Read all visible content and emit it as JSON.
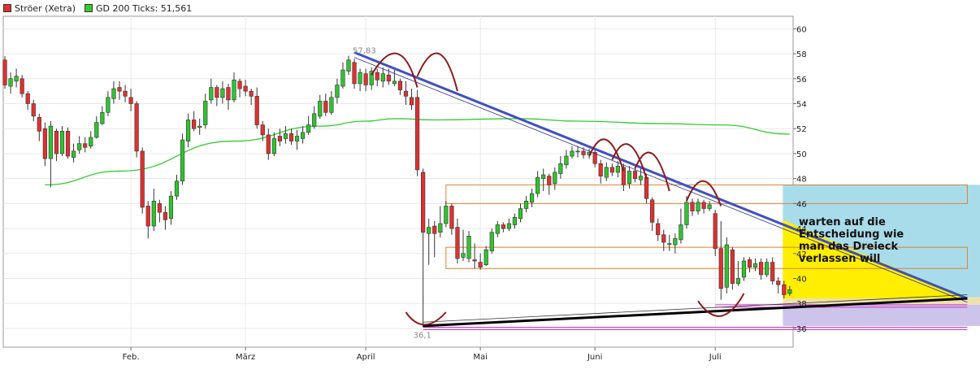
{
  "legend": {
    "series1": "Ströer (Xetra)",
    "series2": "GD 200 Ticks: 51,561",
    "series1_color": "#e03030",
    "series2_color": "#33cc33"
  },
  "annotation": {
    "lines": [
      "warten auf die",
      "Entscheidung wie",
      "man das Dreieck",
      "verlassen will"
    ]
  },
  "colors": {
    "up_candle": "#2ec42e",
    "down_candle": "#e03030",
    "ma_line": "#33cc33",
    "trend_down_thick": "#4050c0",
    "trend_up_thick": "#000000",
    "arcs": "#8b1a1a",
    "boxes": "#e08030",
    "support_lines": "#cc33cc",
    "zone_upper": "#a8dcea",
    "zone_triangle": "#ffee00",
    "zone_lower_tan": "#efe0b0",
    "zone_lower_purple": "#ccc4ea"
  },
  "chart_data": {
    "type": "candlestick",
    "title": "",
    "xlabel": "",
    "ylabel": "",
    "ylim": [
      34.5,
      61
    ],
    "y_ticks": [
      36,
      38,
      40,
      42,
      44,
      46,
      48,
      50,
      52,
      54,
      56,
      58,
      60
    ],
    "x_ticks": [
      {
        "label": "Feb.",
        "day": 22
      },
      {
        "label": "März",
        "day": 42
      },
      {
        "label": "April",
        "day": 63
      },
      {
        "label": "Mai",
        "day": 83
      },
      {
        "label": "Juni",
        "day": 103
      },
      {
        "label": "Juli",
        "day": 124
      }
    ],
    "high_label": {
      "text": "57,83",
      "day": 61,
      "value": 57.83
    },
    "low_label": {
      "text": "36,1",
      "day": 73,
      "value": 36.1
    },
    "candles": [
      [
        0,
        57.5,
        55.5,
        57.8,
        55.2
      ],
      [
        1,
        55.4,
        56.0,
        56.5,
        54.8
      ],
      [
        2,
        55.8,
        56.2,
        56.8,
        55.3
      ],
      [
        3,
        56.0,
        54.8,
        56.3,
        54.5
      ],
      [
        4,
        54.8,
        54.0,
        55.0,
        53.5
      ],
      [
        5,
        54.0,
        53.0,
        54.3,
        52.6
      ],
      [
        6,
        52.9,
        51.8,
        53.2,
        51.0
      ],
      [
        7,
        52.0,
        49.6,
        52.5,
        49.0
      ],
      [
        8,
        49.6,
        52.2,
        52.6,
        47.3
      ],
      [
        9,
        51.8,
        50.0,
        52.0,
        49.4
      ],
      [
        10,
        50.0,
        51.8,
        52.2,
        49.8
      ],
      [
        11,
        51.8,
        49.8,
        52.1,
        49.6
      ],
      [
        12,
        49.7,
        50.2,
        50.8,
        49.3
      ],
      [
        13,
        50.3,
        50.8,
        51.4,
        50.0
      ],
      [
        14,
        50.8,
        50.5,
        51.3,
        50.1
      ],
      [
        15,
        50.6,
        51.3,
        51.8,
        50.4
      ],
      [
        16,
        51.3,
        52.5,
        53.0,
        51.2
      ],
      [
        17,
        52.4,
        53.3,
        53.8,
        52.3
      ],
      [
        18,
        53.3,
        54.5,
        55.0,
        53.0
      ],
      [
        19,
        54.4,
        55.2,
        55.8,
        54.0
      ],
      [
        20,
        55.3,
        55.0,
        55.8,
        54.3
      ],
      [
        21,
        55.0,
        54.6,
        55.5,
        54.1
      ],
      [
        22,
        54.5,
        54.0,
        55.2,
        53.4
      ],
      [
        23,
        54.0,
        50.2,
        54.2,
        49.7
      ],
      [
        24,
        50.2,
        45.7,
        50.5,
        45.2
      ],
      [
        25,
        45.8,
        44.2,
        46.2,
        43.2
      ],
      [
        26,
        44.2,
        46.2,
        47.2,
        43.8
      ],
      [
        27,
        46.0,
        45.3,
        46.3,
        44.5
      ],
      [
        28,
        45.3,
        44.7,
        45.8,
        43.9
      ],
      [
        29,
        44.8,
        46.6,
        47.0,
        44.3
      ],
      [
        30,
        46.6,
        47.8,
        48.3,
        46.3
      ],
      [
        31,
        47.8,
        51.1,
        51.6,
        47.5
      ],
      [
        32,
        51.0,
        52.7,
        53.2,
        50.5
      ],
      [
        33,
        52.7,
        52.0,
        53.4,
        51.8
      ],
      [
        34,
        52.1,
        52.2,
        52.8,
        51.5
      ],
      [
        35,
        52.3,
        54.2,
        54.8,
        52.0
      ],
      [
        36,
        54.3,
        55.3,
        56.0,
        54.0
      ],
      [
        37,
        55.3,
        54.5,
        55.5,
        53.8
      ],
      [
        38,
        54.5,
        55.2,
        55.8,
        54.0
      ],
      [
        39,
        55.3,
        54.3,
        55.6,
        53.5
      ],
      [
        40,
        54.3,
        55.9,
        56.5,
        54.1
      ],
      [
        41,
        55.8,
        55.2,
        56.0,
        54.5
      ],
      [
        42,
        55.4,
        55.0,
        55.9,
        54.6
      ],
      [
        43,
        55.0,
        54.6,
        55.2,
        53.9
      ],
      [
        44,
        54.6,
        52.3,
        55.3,
        52.0
      ],
      [
        45,
        52.3,
        51.5,
        52.6,
        51.0
      ],
      [
        46,
        51.5,
        50.0,
        52.0,
        49.5
      ],
      [
        47,
        50.0,
        51.2,
        51.7,
        49.8
      ],
      [
        48,
        51.4,
        51.0,
        52.0,
        50.6
      ],
      [
        49,
        51.2,
        51.6,
        52.2,
        50.8
      ],
      [
        50,
        51.6,
        51.0,
        52.0,
        50.7
      ],
      [
        51,
        51.0,
        51.4,
        51.9,
        50.3
      ],
      [
        52,
        51.2,
        51.7,
        52.2,
        50.8
      ],
      [
        53,
        51.7,
        52.3,
        53.0,
        51.5
      ],
      [
        54,
        52.2,
        53.2,
        53.8,
        52.0
      ],
      [
        55,
        53.0,
        54.2,
        54.7,
        52.8
      ],
      [
        56,
        54.2,
        53.3,
        54.8,
        53.0
      ],
      [
        57,
        53.3,
        54.5,
        55.0,
        53.1
      ],
      [
        58,
        54.5,
        55.5,
        56.0,
        54.0
      ],
      [
        59,
        55.4,
        56.7,
        57.3,
        55.2
      ],
      [
        60,
        56.6,
        57.5,
        57.83,
        56.3
      ],
      [
        61,
        57.3,
        55.6,
        57.6,
        55.2
      ],
      [
        62,
        55.6,
        56.5,
        56.8,
        55.0
      ],
      [
        63,
        56.4,
        55.5,
        56.8,
        55.0
      ],
      [
        64,
        55.5,
        56.6,
        56.9,
        55.1
      ],
      [
        65,
        56.5,
        55.9,
        56.8,
        55.4
      ],
      [
        66,
        55.8,
        56.4,
        56.9,
        55.3
      ],
      [
        67,
        56.3,
        55.8,
        56.8,
        55.5
      ],
      [
        68,
        55.6,
        55.8,
        56.7,
        55.4
      ],
      [
        69,
        55.8,
        55.1,
        56.0,
        54.7
      ],
      [
        70,
        55.0,
        54.6,
        55.8,
        53.9
      ],
      [
        71,
        54.5,
        53.9,
        55.2,
        53.5
      ],
      [
        72,
        54.5,
        48.7,
        55.1,
        48.2
      ],
      [
        73,
        48.5,
        43.7,
        48.8,
        36.1
      ],
      [
        74,
        43.6,
        44.1,
        44.8,
        41.1
      ],
      [
        75,
        44.2,
        43.6,
        44.6,
        41.7
      ],
      [
        76,
        43.7,
        44.4,
        45.8,
        43.3
      ],
      [
        77,
        44.4,
        45.8,
        46.2,
        44.1
      ],
      [
        78,
        45.8,
        44.0,
        46.0,
        43.5
      ],
      [
        79,
        44.1,
        41.6,
        44.8,
        41.2
      ],
      [
        80,
        41.7,
        42.0,
        43.9,
        41.4
      ],
      [
        81,
        41.6,
        43.4,
        43.8,
        41.3
      ],
      [
        82,
        41.5,
        41.4,
        42.8,
        40.8
      ],
      [
        83,
        41.3,
        40.9,
        42.0,
        40.7
      ],
      [
        84,
        41.1,
        42.3,
        42.6,
        41.0
      ],
      [
        85,
        42.2,
        43.7,
        44.0,
        42.0
      ],
      [
        86,
        43.6,
        44.3,
        44.6,
        43.3
      ],
      [
        87,
        44.3,
        44.0,
        44.5,
        43.7
      ],
      [
        88,
        44.0,
        44.4,
        44.8,
        43.8
      ],
      [
        89,
        44.3,
        44.9,
        45.2,
        44.0
      ],
      [
        90,
        44.8,
        45.6,
        46.0,
        44.5
      ],
      [
        91,
        45.6,
        46.2,
        46.6,
        45.3
      ],
      [
        92,
        46.1,
        46.8,
        47.2,
        45.7
      ],
      [
        93,
        46.8,
        48.1,
        48.6,
        46.5
      ],
      [
        94,
        48.0,
        48.3,
        48.8,
        47.0
      ],
      [
        95,
        48.2,
        47.5,
        48.4,
        46.7
      ],
      [
        96,
        47.6,
        48.5,
        48.9,
        47.1
      ],
      [
        97,
        48.4,
        49.2,
        49.8,
        48.0
      ],
      [
        98,
        49.1,
        49.8,
        50.3,
        48.8
      ],
      [
        99,
        49.8,
        50.2,
        50.6,
        49.6
      ],
      [
        100,
        50.2,
        50.2,
        50.6,
        49.7
      ],
      [
        101,
        50.2,
        49.9,
        50.5,
        49.6
      ],
      [
        102,
        49.9,
        50.1,
        50.4,
        49.6
      ],
      [
        103,
        50.1,
        49.2,
        50.4,
        48.9
      ],
      [
        104,
        49.2,
        48.2,
        49.5,
        47.6
      ],
      [
        105,
        48.1,
        48.9,
        49.3,
        47.8
      ],
      [
        106,
        48.9,
        48.5,
        49.2,
        48.2
      ],
      [
        107,
        48.5,
        49.0,
        49.4,
        48.1
      ],
      [
        108,
        48.9,
        47.5,
        49.2,
        47.0
      ],
      [
        109,
        47.6,
        48.6,
        49.0,
        47.2
      ],
      [
        110,
        48.6,
        48.0,
        48.9,
        47.7
      ],
      [
        111,
        47.9,
        48.2,
        48.8,
        47.5
      ],
      [
        112,
        48.1,
        46.4,
        48.4,
        46.0
      ],
      [
        113,
        46.3,
        44.5,
        46.5,
        43.8
      ],
      [
        114,
        44.4,
        43.5,
        44.8,
        43.0
      ],
      [
        115,
        43.5,
        42.9,
        43.9,
        42.2
      ],
      [
        116,
        42.8,
        42.8,
        43.5,
        42.2
      ],
      [
        117,
        42.7,
        43.2,
        43.6,
        42.0
      ],
      [
        118,
        43.1,
        44.3,
        45.6,
        42.8
      ],
      [
        119,
        44.3,
        46.1,
        46.6,
        44.0
      ],
      [
        120,
        46.1,
        45.4,
        46.4,
        45.0
      ],
      [
        121,
        45.4,
        46.1,
        46.4,
        45.1
      ],
      [
        122,
        46.1,
        45.6,
        46.3,
        45.2
      ],
      [
        123,
        45.6,
        45.9,
        46.2,
        45.4
      ],
      [
        124,
        45.2,
        42.4,
        45.5,
        41.8
      ],
      [
        125,
        42.4,
        39.2,
        44.6,
        38.3
      ],
      [
        126,
        39.3,
        42.7,
        43.3,
        38.8
      ],
      [
        127,
        42.3,
        39.6,
        42.5,
        39.1
      ],
      [
        128,
        39.6,
        40.0,
        41.4,
        39.4
      ],
      [
        129,
        40.1,
        41.4,
        41.7,
        39.8
      ],
      [
        130,
        41.5,
        40.9,
        41.7,
        40.5
      ],
      [
        131,
        40.9,
        41.2,
        41.6,
        40.6
      ],
      [
        132,
        41.3,
        40.3,
        41.6,
        39.9
      ],
      [
        133,
        40.3,
        41.3,
        41.6,
        40.1
      ],
      [
        134,
        41.3,
        39.8,
        41.7,
        39.5
      ],
      [
        135,
        39.8,
        39.5,
        40.1,
        38.8
      ],
      [
        136,
        39.5,
        38.7,
        39.8,
        38.4
      ],
      [
        137,
        38.8,
        39.1,
        39.4,
        38.6
      ]
    ],
    "moving_average": {
      "name": "GD 200 Ticks",
      "points": [
        [
          7,
          47.5
        ],
        [
          20,
          48.6
        ],
        [
          40,
          51.0
        ],
        [
          55,
          52.2
        ],
        [
          63,
          52.6
        ],
        [
          68,
          52.8
        ],
        [
          75,
          52.7
        ],
        [
          90,
          52.8
        ],
        [
          100,
          52.6
        ],
        [
          115,
          52.4
        ],
        [
          125,
          52.3
        ],
        [
          137,
          51.561
        ]
      ]
    },
    "trend_lines": {
      "down_thick": [
        [
          61,
          58.1
        ],
        [
          168,
          38.4
        ]
      ],
      "down_thin": [
        [
          61,
          57.7
        ],
        [
          168,
          38.1
        ]
      ],
      "up_thick": [
        [
          73,
          36.2
        ],
        [
          168,
          38.4
        ]
      ],
      "up_thin": [
        [
          73,
          36.5
        ],
        [
          168,
          38.7
        ]
      ]
    },
    "arcs": [
      [
        [
          64,
          56.3
        ],
        [
          69,
          58.0
        ],
        [
          72,
          55.3
        ]
      ],
      [
        [
          72,
          56.2
        ],
        [
          76,
          58.0
        ],
        [
          79,
          55.0
        ]
      ],
      [
        [
          102,
          49.8
        ],
        [
          105,
          51.1
        ],
        [
          108,
          48.6
        ]
      ],
      [
        [
          106,
          49.5
        ],
        [
          109,
          50.7
        ],
        [
          112,
          48.0
        ]
      ],
      [
        [
          110,
          48.8
        ],
        [
          113,
          50.0
        ],
        [
          116,
          47.0
        ]
      ],
      [
        [
          119,
          46.2
        ],
        [
          122,
          47.8
        ],
        [
          125,
          45.8
        ]
      ]
    ],
    "valley_arcs": [
      [
        [
          70,
          37.3
        ],
        [
          73,
          36.3
        ],
        [
          77,
          37.3
        ]
      ],
      [
        [
          121,
          38.2
        ],
        [
          125,
          37.0
        ],
        [
          129,
          38.8
        ]
      ]
    ],
    "zones": {
      "upper_blue": {
        "x_from": 135.8,
        "y_from": 38.5,
        "y_to": 47.5
      },
      "lower_tan": {
        "x_from": 135.8,
        "y_from": 37.9,
        "y_to": 38.5
      },
      "lower_purple": {
        "x_from": 135.8,
        "y_from": 36.2,
        "y_to": 37.9
      },
      "triangle": [
        [
          135.8,
          44.7
        ],
        [
          168,
          38.4
        ],
        [
          135.8,
          38.4
        ]
      ]
    },
    "boxes": [
      {
        "x_from": 77,
        "x_to": 168,
        "y_from": 46.0,
        "y_to": 47.5
      },
      {
        "x_from": 77,
        "x_to": 168,
        "y_from": 40.8,
        "y_to": 42.5
      }
    ],
    "horizontal_lines": [
      {
        "value": 37.8,
        "x_from": 124,
        "x_to": 168
      },
      {
        "value": 36.0,
        "x_from": 73,
        "x_to": 168
      }
    ]
  }
}
